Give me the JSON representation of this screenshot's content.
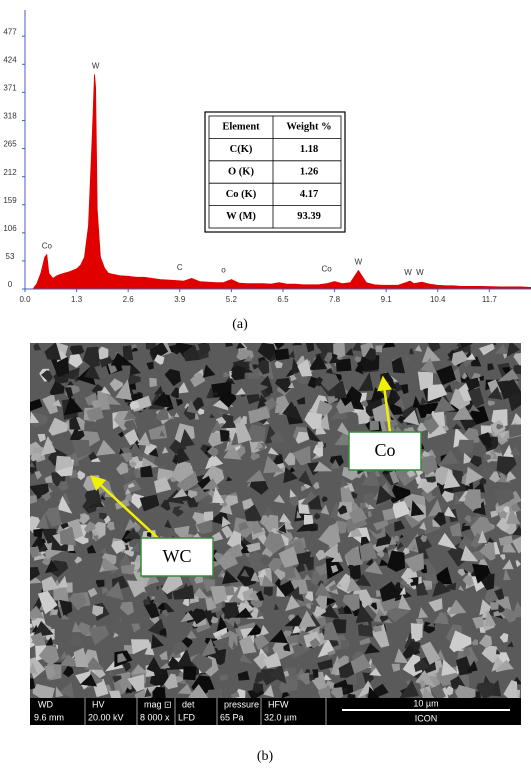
{
  "chart_data": {
    "type": "area",
    "color": "#e00000",
    "x": [
      0.2,
      0.3,
      0.4,
      0.5,
      0.55,
      0.6,
      0.7,
      0.8,
      0.9,
      1.0,
      1.1,
      1.2,
      1.3,
      1.4,
      1.5,
      1.6,
      1.7,
      1.75,
      1.78,
      1.82,
      1.9,
      2.0,
      2.1,
      2.2,
      2.4,
      2.6,
      2.8,
      3.0,
      3.2,
      3.4,
      3.6,
      3.8,
      4.0,
      4.2,
      4.4,
      4.6,
      4.8,
      5.0,
      5.2,
      5.4,
      5.6,
      5.8,
      6.0,
      6.2,
      6.4,
      6.6,
      6.8,
      7.0,
      7.2,
      7.4,
      7.6,
      7.8,
      8.0,
      8.2,
      8.4,
      8.6,
      8.8,
      9.0,
      9.2,
      9.4,
      9.6,
      9.7,
      9.8,
      10.0,
      10.2,
      10.4,
      10.6,
      10.8,
      11.0,
      11.5,
      12.0,
      12.5,
      12.75
    ],
    "values": [
      0,
      10,
      30,
      60,
      65,
      30,
      20,
      25,
      28,
      30,
      32,
      35,
      38,
      45,
      60,
      120,
      300,
      405,
      380,
      150,
      60,
      40,
      30,
      28,
      25,
      24,
      22,
      22,
      20,
      18,
      17,
      16,
      15,
      20,
      14,
      13,
      12,
      12,
      18,
      11,
      10,
      10,
      10,
      9,
      12,
      9,
      9,
      8,
      8,
      8,
      10,
      14,
      10,
      12,
      35,
      12,
      8,
      7,
      7,
      7,
      12,
      15,
      10,
      13,
      9,
      7,
      6,
      6,
      5,
      5,
      4,
      4,
      3
    ],
    "xlim": [
      0,
      12.75
    ],
    "xticks": [
      {
        "value": 0,
        "label": "0.0"
      },
      1.3,
      2.6,
      3.9,
      5.2,
      6.5,
      7.8,
      9.1,
      10.4,
      11.7
    ],
    "ylim": [
      0,
      517
    ],
    "yticks": [
      0,
      53,
      106,
      159,
      212,
      265,
      318,
      371,
      424,
      477
    ],
    "annotations": [
      {
        "text": "Co",
        "x": 0.55,
        "y": 65
      },
      {
        "text": "W",
        "x": 1.78,
        "y": 405
      },
      {
        "text": "C",
        "x": 3.9,
        "y": 25
      },
      {
        "text": "o",
        "x": 5.0,
        "y": 20
      },
      {
        "text": "Co",
        "x": 7.6,
        "y": 22
      },
      {
        "text": "W",
        "x": 8.4,
        "y": 35
      },
      {
        "text": "W",
        "x": 9.65,
        "y": 15
      },
      {
        "text": "W",
        "x": 9.95,
        "y": 15
      }
    ]
  },
  "table": {
    "header": [
      "Element",
      "Weight %"
    ],
    "rows": [
      [
        "C(K)",
        "1.18"
      ],
      [
        "O (K)",
        "1.26"
      ],
      [
        "Co (K)",
        "4.17"
      ],
      [
        "W (M)",
        "93.39"
      ]
    ]
  },
  "panel_a_label": "(a)",
  "sem": {
    "labels": [
      "Co",
      "WC"
    ],
    "info_bar": {
      "heads": [
        "WD",
        "HV",
        "mag ⊡",
        "det",
        "pressure",
        "HFW"
      ],
      "values": [
        "9.6 mm",
        "20.00 kV",
        "8 000 x",
        "LFD",
        "65 Pa",
        "32.0 µm"
      ],
      "scale": "10 µm",
      "brand": "ICON"
    }
  },
  "panel_b_label": "(b)"
}
